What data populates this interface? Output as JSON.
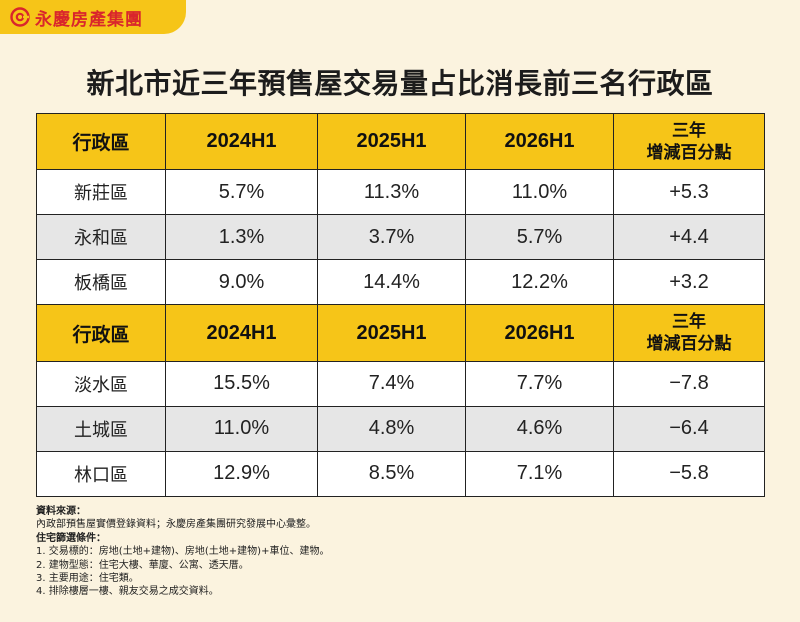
{
  "brand": {
    "name": "永慶房產集團"
  },
  "title": "新北市近三年預售屋交易量占比消長前三名行政區",
  "header": {
    "district": "行政區",
    "col1": "2024H1",
    "col2": "2025H1",
    "col3": "2026H1",
    "change_line1": "三年",
    "change_line2": "增減百分點"
  },
  "top_rows": [
    {
      "district": "新莊區",
      "v1": "5.7%",
      "v2": "11.3%",
      "v3": "11.0%",
      "change": "+5.3"
    },
    {
      "district": "永和區",
      "v1": "1.3%",
      "v2": "3.7%",
      "v3": "5.7%",
      "change": "+4.4"
    },
    {
      "district": "板橋區",
      "v1": "9.0%",
      "v2": "14.4%",
      "v3": "12.2%",
      "change": "+3.2"
    }
  ],
  "bottom_rows": [
    {
      "district": "淡水區",
      "v1": "15.5%",
      "v2": "7.4%",
      "v3": "7.7%",
      "change": "−7.8"
    },
    {
      "district": "土城區",
      "v1": "11.0%",
      "v2": "4.8%",
      "v3": "4.6%",
      "change": "−6.4"
    },
    {
      "district": "林口區",
      "v1": "12.9%",
      "v2": "8.5%",
      "v3": "7.1%",
      "change": "−5.8"
    }
  ],
  "notes": {
    "source_heading": "資料來源：",
    "source_text": "內政部預售屋實價登錄資料；永慶房產集團研究發展中心彙整。",
    "criteria_heading": "住宅篩選條件：",
    "criteria": [
      "1. 交易標的：房地(土地+建物)、房地(土地+建物)+車位、建物。",
      "2. 建物型態：住宅大樓、華廈、公寓、透天厝。",
      "3. 主要用途：住宅類。",
      "4. 排除樓層一樓、親友交易之成交資料。"
    ]
  },
  "colors": {
    "background": "#fbf3df",
    "header_yellow": "#f6c518",
    "brand_red": "#d9262c",
    "row_grey": "#e6e6e6",
    "row_white": "#ffffff"
  },
  "icons": {
    "logo": "brand-logo-icon"
  }
}
